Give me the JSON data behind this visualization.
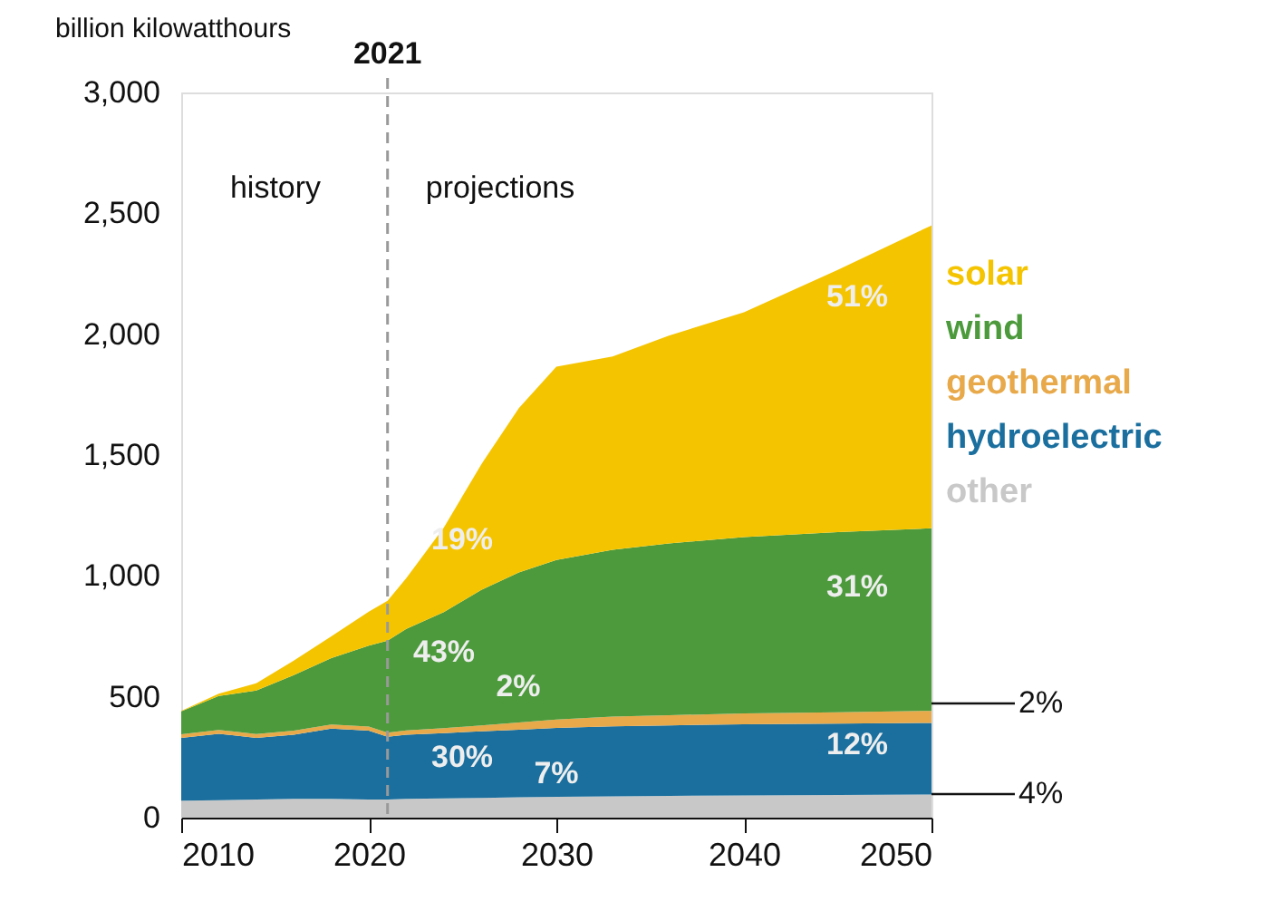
{
  "chart_data": {
    "type": "area",
    "stacked": true,
    "ylabel": "billion kilowatthours",
    "x": [
      2010,
      2012,
      2014,
      2016,
      2018,
      2020,
      2021,
      2022,
      2024,
      2026,
      2028,
      2030,
      2033,
      2036,
      2040,
      2045,
      2050
    ],
    "series": [
      {
        "name": "other",
        "color": "#c8c8c8",
        "values": [
          70,
          72,
          75,
          78,
          78,
          75,
          75,
          78,
          80,
          82,
          84,
          86,
          88,
          90,
          92,
          94,
          96
        ]
      },
      {
        "name": "hydroelectric",
        "color": "#1a6f9e",
        "values": [
          260,
          275,
          255,
          265,
          290,
          285,
          260,
          265,
          270,
          275,
          280,
          285,
          290,
          292,
          294,
          295,
          296
        ]
      },
      {
        "name": "geothermal",
        "color": "#e8a94a",
        "values": [
          15,
          16,
          16,
          17,
          17,
          17,
          17,
          18,
          20,
          25,
          30,
          35,
          40,
          42,
          45,
          47,
          50
        ]
      },
      {
        "name": "wind",
        "color": "#4c9a3c",
        "values": [
          95,
          140,
          180,
          230,
          275,
          335,
          380,
          420,
          480,
          560,
          620,
          660,
          690,
          710,
          730,
          745,
          755
        ]
      },
      {
        "name": "solar",
        "color": "#f5c400",
        "values": [
          2,
          10,
          30,
          60,
          90,
          140,
          165,
          210,
          350,
          520,
          680,
          800,
          800,
          860,
          930,
          1085,
          1253
        ]
      }
    ],
    "xlim": [
      2010,
      2050
    ],
    "xticks": [
      2010,
      2020,
      2030,
      2040,
      2050
    ],
    "ylim": [
      0,
      3000
    ],
    "yticks": [
      0,
      500,
      {
        "value": 1000,
        "label": "1,000"
      },
      {
        "value": 1500,
        "label": "1,500"
      },
      {
        "value": 2000,
        "label": "2,000"
      },
      {
        "value": 2500,
        "label": "2,500"
      },
      {
        "value": 3000,
        "label": "3,000"
      }
    ],
    "grid": false,
    "legend": "right",
    "ref_lines": [
      {
        "axis": "x",
        "value": 2021,
        "label": "2021",
        "color": "#999999",
        "line_style": "dashed"
      }
    ],
    "annotations": [
      "history",
      "projections",
      "51%",
      "19%",
      "31%",
      "43%",
      "2%",
      "30%",
      "7%",
      "12%",
      "2%",
      "4%"
    ]
  }
}
